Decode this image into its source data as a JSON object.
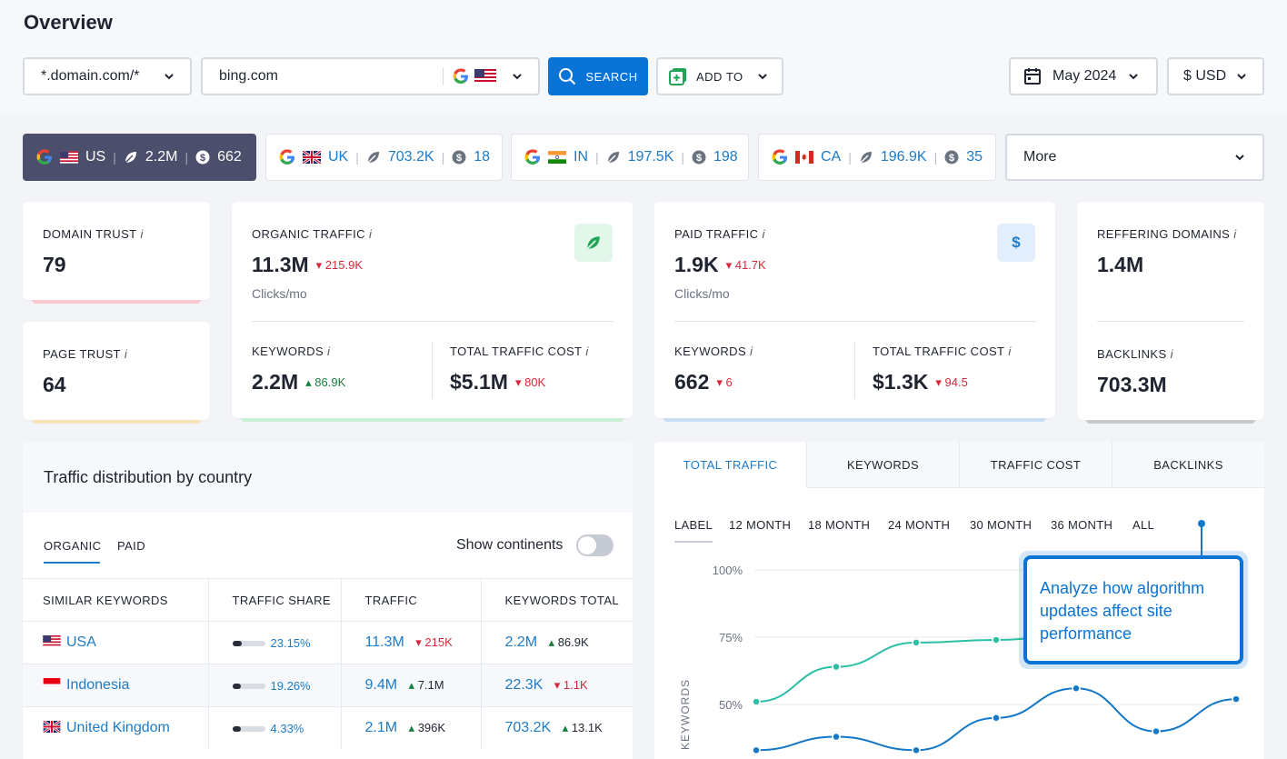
{
  "page_title": "Overview",
  "search": {
    "scope": "*.domain.com/*",
    "domain": "bing.com",
    "search_label": "SEARCH",
    "add_to_label": "ADD TO",
    "date": "May 2024",
    "currency": "$ USD"
  },
  "country_tabs": [
    {
      "code": "US",
      "traffic": "2.2M",
      "keywords": "662"
    },
    {
      "code": "UK",
      "traffic": "703.2K",
      "keywords": "18"
    },
    {
      "code": "IN",
      "traffic": "197.5K",
      "keywords": "198"
    },
    {
      "code": "CA",
      "traffic": "196.9K",
      "keywords": "35"
    }
  ],
  "more_label": "More",
  "metrics": {
    "domain_trust": {
      "label": "DOMAIN TRUST",
      "value": "79"
    },
    "page_trust": {
      "label": "PAGE TRUST",
      "value": "64"
    },
    "organic": {
      "label": "ORGANIC TRAFFIC",
      "value": "11.3M",
      "delta": "215.9K",
      "unit": "Clicks/mo",
      "keywords_label": "KEYWORDS",
      "keywords": "2.2M",
      "keywords_delta": "86.9K",
      "cost_label": "TOTAL TRAFFIC COST",
      "cost": "$5.1M",
      "cost_delta": "80K"
    },
    "paid": {
      "label": "PAID TRAFFIC",
      "value": "1.9K",
      "delta": "41.7K",
      "unit": "Clicks/mo",
      "keywords_label": "KEYWORDS",
      "keywords": "662",
      "keywords_delta": "6",
      "cost_label": "TOTAL TRAFFIC COST",
      "cost": "$1.3K",
      "cost_delta": "94.5",
      "dollar_icon": "$"
    },
    "referring": {
      "label": "REFFERING DOMAINS",
      "value": "1.4M",
      "backlinks_label": "BACKLINKS",
      "backlinks": "703.3M"
    },
    "info_glyph": "i"
  },
  "distribution": {
    "title": "Traffic distribution by country",
    "tabs": [
      "ORGANIC",
      "PAID"
    ],
    "toggle_label": "Show continents",
    "headers": [
      "SIMILAR KEYWORDS",
      "TRAFFIC SHARE",
      "TRAFFIC",
      "KEYWORDS TOTAL"
    ],
    "rows": [
      {
        "country": "USA",
        "share": "23.15%",
        "share_fill": 0.2315,
        "traffic": "11.3M",
        "traffic_delta": "215K",
        "keywords": "2.2M",
        "keywords_delta": "86.9K"
      },
      {
        "country": "Indonesia",
        "share": "19.26%",
        "share_fill": 0.1926,
        "traffic": "9.4M",
        "traffic_delta": "7.1M",
        "keywords": "22.3K",
        "keywords_delta": "1.1K"
      },
      {
        "country": "United Kingdom",
        "share": "4.33%",
        "share_fill": 0.0433,
        "traffic": "2.1M",
        "traffic_delta": "396K",
        "keywords": "703.2K",
        "keywords_delta": "13.1K"
      }
    ]
  },
  "graph": {
    "tabs": [
      "TOTAL TRAFFIC",
      "KEYWORDS",
      "TRAFFIC COST",
      "BACKLINKS"
    ],
    "ranges": [
      "LABEL",
      "12 MONTH",
      "18 MONTH",
      "24 MONTH",
      "30 MONTH",
      "36 MONTH",
      "ALL"
    ],
    "tooltip": "Analyze how algorithm updates affect site performance"
  },
  "chart_data": {
    "type": "line",
    "ylabel": "KEYWORDS",
    "yticks": [
      "100%",
      "75%",
      "50%"
    ],
    "ylim": [
      0,
      100
    ],
    "series": [
      {
        "color": "#2bbfa4",
        "values": [
          51,
          64,
          73,
          74,
          76
        ]
      },
      {
        "color": "#1478c8",
        "values": [
          33,
          38,
          33,
          45,
          56,
          40,
          52
        ]
      }
    ]
  },
  "colors": {
    "accent": "#0a74d6",
    "active_tab": "#4c4f6b",
    "down": "#d6283a",
    "up": "#17803d"
  }
}
